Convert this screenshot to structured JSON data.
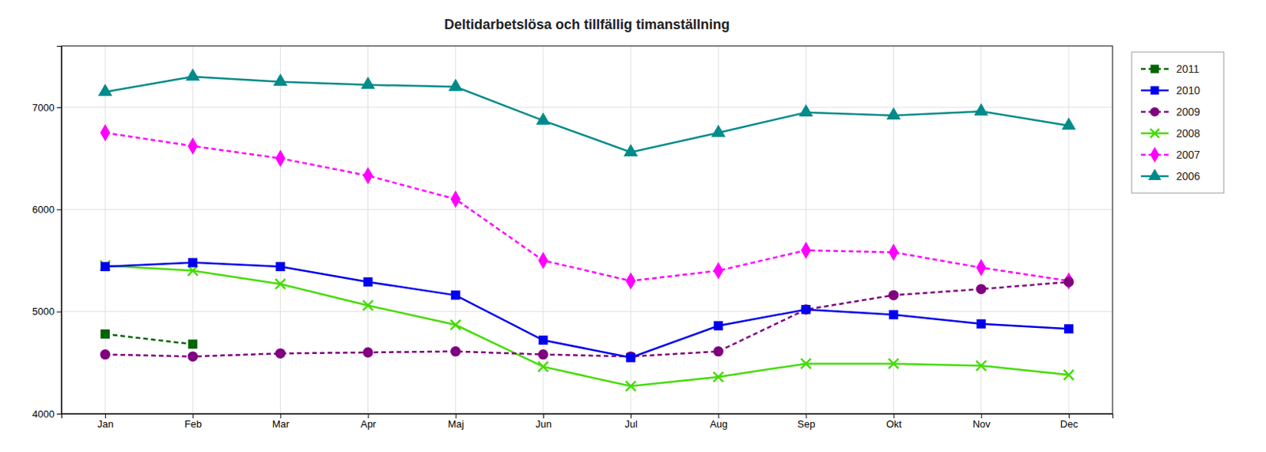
{
  "chart_data": {
    "type": "line",
    "title": "Deltidarbetslösa och tillfällig timanställning",
    "categories": [
      "Jan",
      "Feb",
      "Mar",
      "Apr",
      "Maj",
      "Jun",
      "Jul",
      "Aug",
      "Sep",
      "Okt",
      "Nov",
      "Dec"
    ],
    "series": [
      {
        "name": "2006",
        "color": "#008B8B",
        "marker": "triangle",
        "line_style": "solid",
        "values": [
          7150,
          7300,
          7250,
          7220,
          7200,
          6870,
          6560,
          6750,
          6950,
          6920,
          6960,
          6820
        ]
      },
      {
        "name": "2007",
        "color": "#FF00FF",
        "marker": "diamond",
        "line_style": "dotted",
        "values": [
          6750,
          6620,
          6500,
          6330,
          6100,
          5500,
          5300,
          5400,
          5600,
          5580,
          5430,
          5300
        ]
      },
      {
        "name": "2008",
        "color": "#44DD00",
        "marker": "x",
        "line_style": "solid",
        "values": [
          5450,
          5400,
          5270,
          5060,
          4870,
          4460,
          4270,
          4360,
          4490,
          4490,
          4470,
          4380
        ]
      },
      {
        "name": "2009",
        "color": "#800080",
        "marker": "circle",
        "line_style": "dotted",
        "values": [
          4580,
          4560,
          4590,
          4600,
          4610,
          4580,
          4560,
          4610,
          5020,
          5160,
          5220,
          5290
        ]
      },
      {
        "name": "2010",
        "color": "#0000EE",
        "marker": "square",
        "line_style": "solid",
        "values": [
          5440,
          5480,
          5440,
          5290,
          5160,
          4720,
          4550,
          4860,
          5020,
          4970,
          4880,
          4830
        ]
      },
      {
        "name": "2011",
        "color": "#006400",
        "marker": "square",
        "line_style": "dotted",
        "values": [
          4780,
          4680,
          null,
          null,
          null,
          null,
          null,
          null,
          null,
          null,
          null,
          null
        ]
      }
    ],
    "ylim": [
      4000,
      7600
    ],
    "yticks": [
      4000,
      5000,
      6000,
      7000
    ],
    "grid": true,
    "legend": "right"
  }
}
